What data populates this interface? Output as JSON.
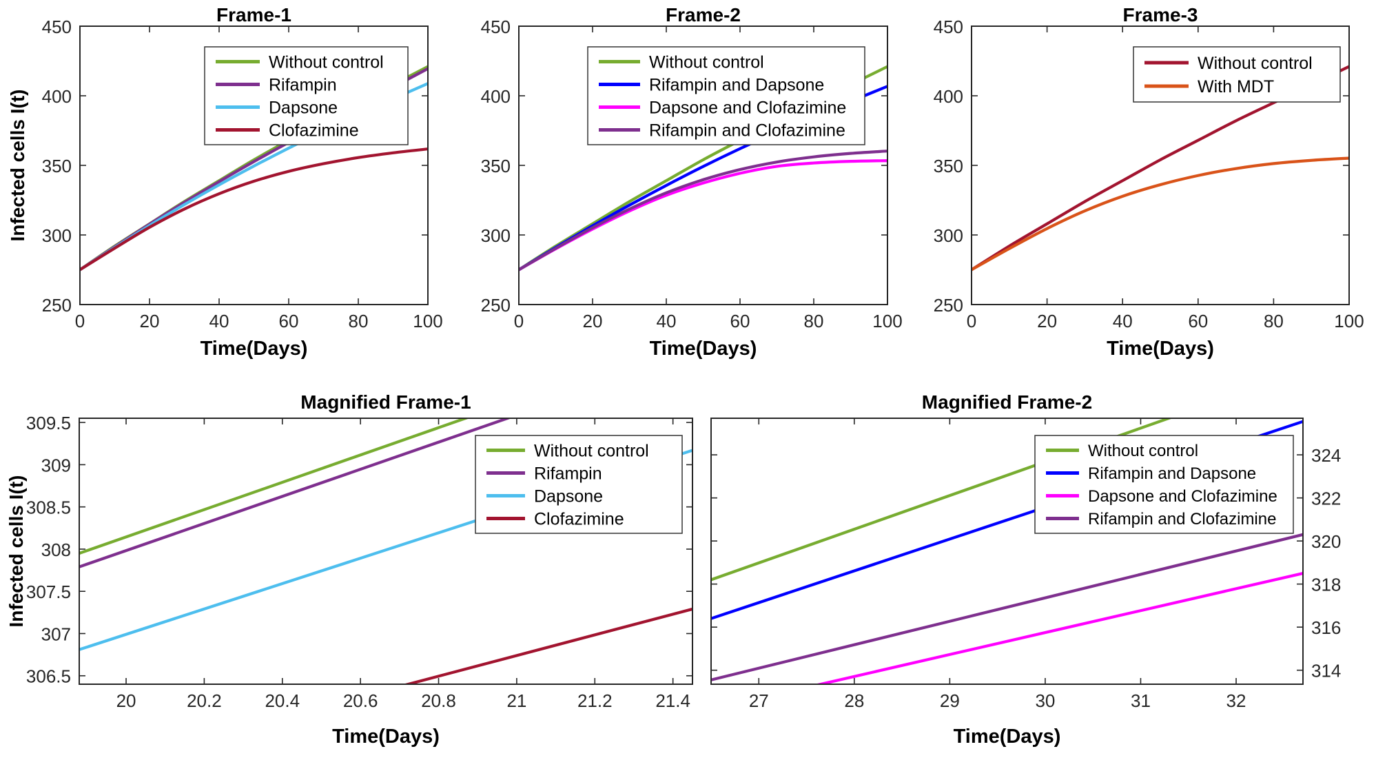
{
  "figure": {
    "background": "#ffffff",
    "axis_color": "#262626",
    "text_color": "#000000"
  },
  "chart_data": [
    {
      "type": "line",
      "title": "Frame-1",
      "xlabel": "Time(Days)",
      "ylabel": "Infected cells I(t)",
      "xlim": [
        0,
        100
      ],
      "ylim": [
        250,
        450
      ],
      "xticks": [
        0,
        20,
        40,
        60,
        80,
        100
      ],
      "xtick_labels": [
        "0",
        "20",
        "40",
        "60",
        "80",
        "100"
      ],
      "yticks": [
        250,
        300,
        350,
        400,
        450
      ],
      "ytick_labels": [
        "250",
        "300",
        "350",
        "400",
        "450"
      ],
      "ytick_side": "left",
      "grid": false,
      "legend_position": "upper center",
      "x": [
        0,
        10,
        20,
        30,
        40,
        50,
        60,
        70,
        80,
        90,
        100
      ],
      "series": [
        {
          "name": "Without control",
          "color": "#77AC30",
          "y": [
            275,
            292,
            308,
            324,
            339,
            354,
            368,
            382,
            395,
            408,
            421
          ]
        },
        {
          "name": "Rifampin",
          "color": "#7E2F8E",
          "y": [
            275,
            291.6,
            307.8,
            323.4,
            338.3,
            352.7,
            366.5,
            379.9,
            393,
            406.2,
            419.5
          ]
        },
        {
          "name": "Dapsone",
          "color": "#4DBEEE",
          "y": [
            275,
            291,
            306.8,
            321.8,
            336,
            349.5,
            362.4,
            374.7,
            386.4,
            397.8,
            408.8
          ]
        },
        {
          "name": "Clofazimine",
          "color": "#A2142F",
          "y": [
            275,
            290.5,
            305.5,
            318.6,
            329.6,
            338.6,
            345.7,
            351.2,
            355.6,
            359,
            361.8
          ]
        }
      ]
    },
    {
      "type": "line",
      "title": "Frame-2",
      "xlabel": "Time(Days)",
      "ylabel": "",
      "xlim": [
        0,
        100
      ],
      "ylim": [
        250,
        450
      ],
      "xticks": [
        0,
        20,
        40,
        60,
        80,
        100
      ],
      "xtick_labels": [
        "0",
        "20",
        "40",
        "60",
        "80",
        "100"
      ],
      "yticks": [
        250,
        300,
        350,
        400,
        450
      ],
      "ytick_labels": [
        "250",
        "300",
        "350",
        "400",
        "450"
      ],
      "ytick_side": "left",
      "grid": false,
      "legend_position": "upper center",
      "x": [
        0,
        10,
        20,
        30,
        40,
        50,
        60,
        70,
        80,
        90,
        100
      ],
      "series": [
        {
          "name": "Without control",
          "color": "#77AC30",
          "y": [
            275,
            292,
            308,
            324,
            339,
            354,
            368,
            382,
            395,
            408,
            421
          ]
        },
        {
          "name": "Rifampin and Dapsone",
          "color": "#0000FF",
          "y": [
            275,
            291,
            306.6,
            321.4,
            335.6,
            349.2,
            362,
            374,
            385.3,
            396,
            406.8
          ]
        },
        {
          "name": "Dapsone and Clofazimine",
          "color": "#FF00FF",
          "y": [
            275,
            290,
            304.2,
            317.2,
            328.5,
            337.3,
            344.3,
            349.3,
            351.7,
            352.9,
            353.4
          ]
        },
        {
          "name": "Rifampin and Clofazimine",
          "color": "#7E2F8E",
          "y": [
            275,
            290.4,
            305.2,
            318.6,
            330.3,
            339.7,
            347,
            352.4,
            356.1,
            358.6,
            360.3
          ]
        }
      ]
    },
    {
      "type": "line",
      "title": "Frame-3",
      "xlabel": "Time(Days)",
      "ylabel": "",
      "xlim": [
        0,
        100
      ],
      "ylim": [
        250,
        450
      ],
      "xticks": [
        0,
        20,
        40,
        60,
        80,
        100
      ],
      "xtick_labels": [
        "0",
        "20",
        "40",
        "60",
        "80",
        "100"
      ],
      "yticks": [
        250,
        300,
        350,
        400,
        450
      ],
      "ytick_labels": [
        "250",
        "300",
        "350",
        "400",
        "450"
      ],
      "ytick_side": "left",
      "grid": false,
      "legend_position": "upper right",
      "x": [
        0,
        10,
        20,
        30,
        40,
        50,
        60,
        70,
        80,
        90,
        100
      ],
      "series": [
        {
          "name": "Without control",
          "color": "#A2142F",
          "y": [
            275,
            292,
            308,
            324,
            339,
            354,
            368,
            382,
            395,
            408,
            421
          ]
        },
        {
          "name": "With MDT",
          "color": "#D95319",
          "y": [
            275,
            290.2,
            304.6,
            317.3,
            327.8,
            336.1,
            342.7,
            347.7,
            351.3,
            353.6,
            355.2
          ]
        }
      ]
    },
    {
      "type": "line",
      "title": "Magnified Frame-1",
      "xlabel": "Time(Days)",
      "ylabel": "Infected cells I(t)",
      "xlim": [
        19.88,
        21.45
      ],
      "ylim": [
        306.4,
        309.55
      ],
      "xticks": [
        20,
        20.2,
        20.4,
        20.6,
        20.8,
        21,
        21.2,
        21.4
      ],
      "xtick_labels": [
        "20",
        "20.2",
        "20.4",
        "20.6",
        "20.8",
        "21",
        "21.2",
        "21.4"
      ],
      "yticks": [
        306.5,
        307,
        307.5,
        308,
        308.5,
        309,
        309.5
      ],
      "ytick_labels": [
        "306.5",
        "307",
        "307.5",
        "308",
        "308.5",
        "309",
        "309.5"
      ],
      "ytick_side": "left",
      "grid": false,
      "legend_position": "upper right",
      "x": [
        19.88,
        21.45
      ],
      "series": [
        {
          "name": "Without control",
          "color": "#77AC30",
          "y": [
            307.95,
            310.49
          ]
        },
        {
          "name": "Rifampin",
          "color": "#7E2F8E",
          "y": [
            307.79,
            310.31
          ]
        },
        {
          "name": "Dapsone",
          "color": "#4DBEEE",
          "y": [
            306.81,
            309.17
          ]
        },
        {
          "name": "Clofazimine",
          "color": "#A2142F",
          "y": [
            305.37,
            307.29
          ]
        }
      ]
    },
    {
      "type": "line",
      "title": "Magnified Frame-2",
      "xlabel": "Time(Days)",
      "ylabel": "",
      "xlim": [
        26.5,
        32.7
      ],
      "ylim": [
        313.35,
        325.7
      ],
      "xticks": [
        27,
        28,
        29,
        30,
        31,
        32
      ],
      "xtick_labels": [
        "27",
        "28",
        "29",
        "30",
        "31",
        "32"
      ],
      "yticks": [
        314,
        316,
        318,
        320,
        322,
        324
      ],
      "ytick_labels": [
        "314",
        "316",
        "318",
        "320",
        "322",
        "324"
      ],
      "ytick_side": "right",
      "grid": false,
      "legend_position": "upper center-right",
      "x": [
        26.5,
        32.7
      ],
      "series": [
        {
          "name": "Without control",
          "color": "#77AC30",
          "y": [
            318.2,
            327.9
          ]
        },
        {
          "name": "Rifampin and Dapsone",
          "color": "#0000FF",
          "y": [
            316.4,
            325.55
          ]
        },
        {
          "name": "Dapsone and Clofazimine",
          "color": "#FF00FF",
          "y": [
            312.18,
            318.5
          ]
        },
        {
          "name": "Rifampin and Clofazimine",
          "color": "#7E2F8E",
          "y": [
            313.55,
            320.3
          ]
        }
      ]
    }
  ]
}
